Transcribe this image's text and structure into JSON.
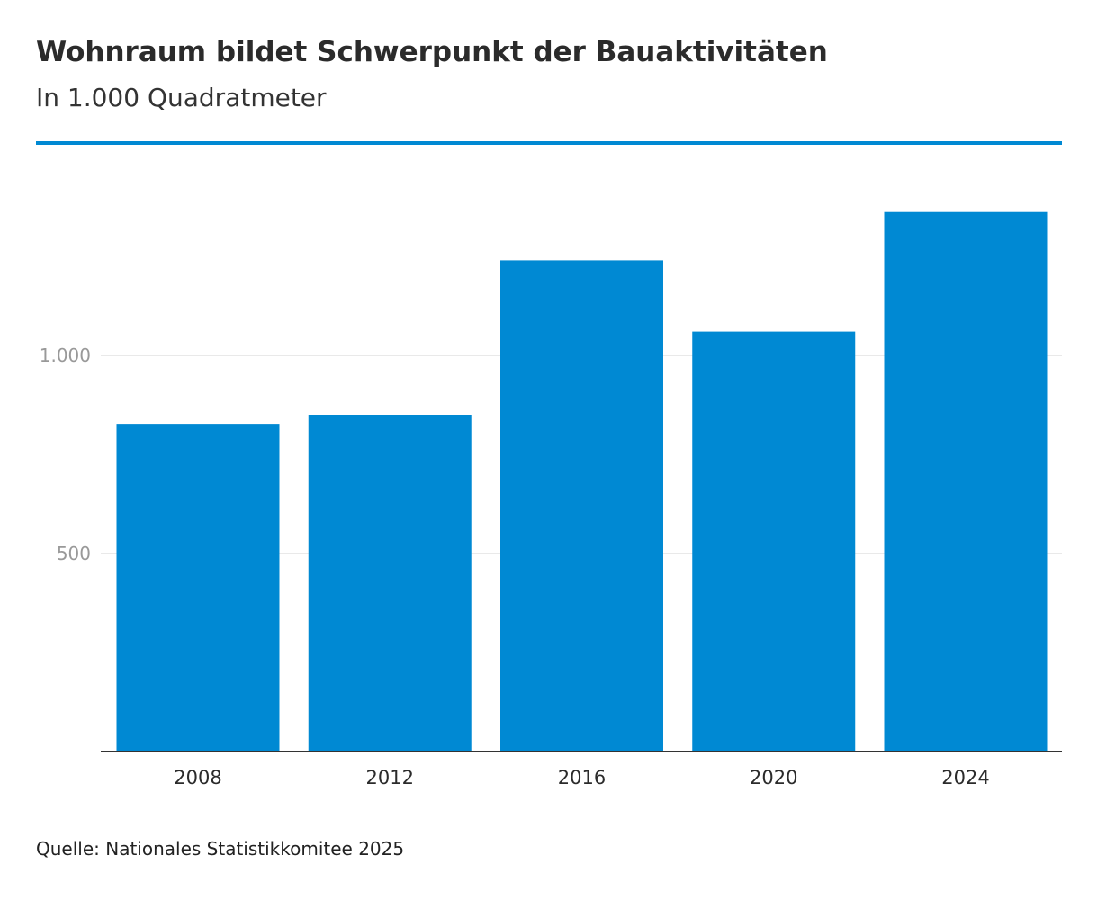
{
  "header": {
    "title": "Wohnraum bildet Schwerpunkt der Bauaktivitäten",
    "subtitle": "In 1.000 Quadratmeter"
  },
  "footer": {
    "source": "Quelle: Nationales Statistikkomitee 2025"
  },
  "colors": {
    "bar": "#0089d3",
    "accent_rule": "#0089d3",
    "gridline": "#e2e2e2",
    "baseline": "#333333",
    "ytick_text": "#999999",
    "xtick_text": "#2b2b2b"
  },
  "chart_data": {
    "type": "bar",
    "title": "Wohnraum bildet Schwerpunkt der Bauaktivitäten",
    "subtitle": "In 1.000 Quadratmeter",
    "xlabel": "",
    "ylabel": "",
    "categories": [
      "2008",
      "2012",
      "2016",
      "2020",
      "2024"
    ],
    "values": [
      827,
      850,
      1240,
      1060,
      1362
    ],
    "ylim": [
      0,
      1400
    ],
    "yticks": [
      500,
      1000
    ],
    "ytick_labels": [
      "500",
      "1.000"
    ],
    "grid": "horizontal",
    "legend": "none"
  }
}
